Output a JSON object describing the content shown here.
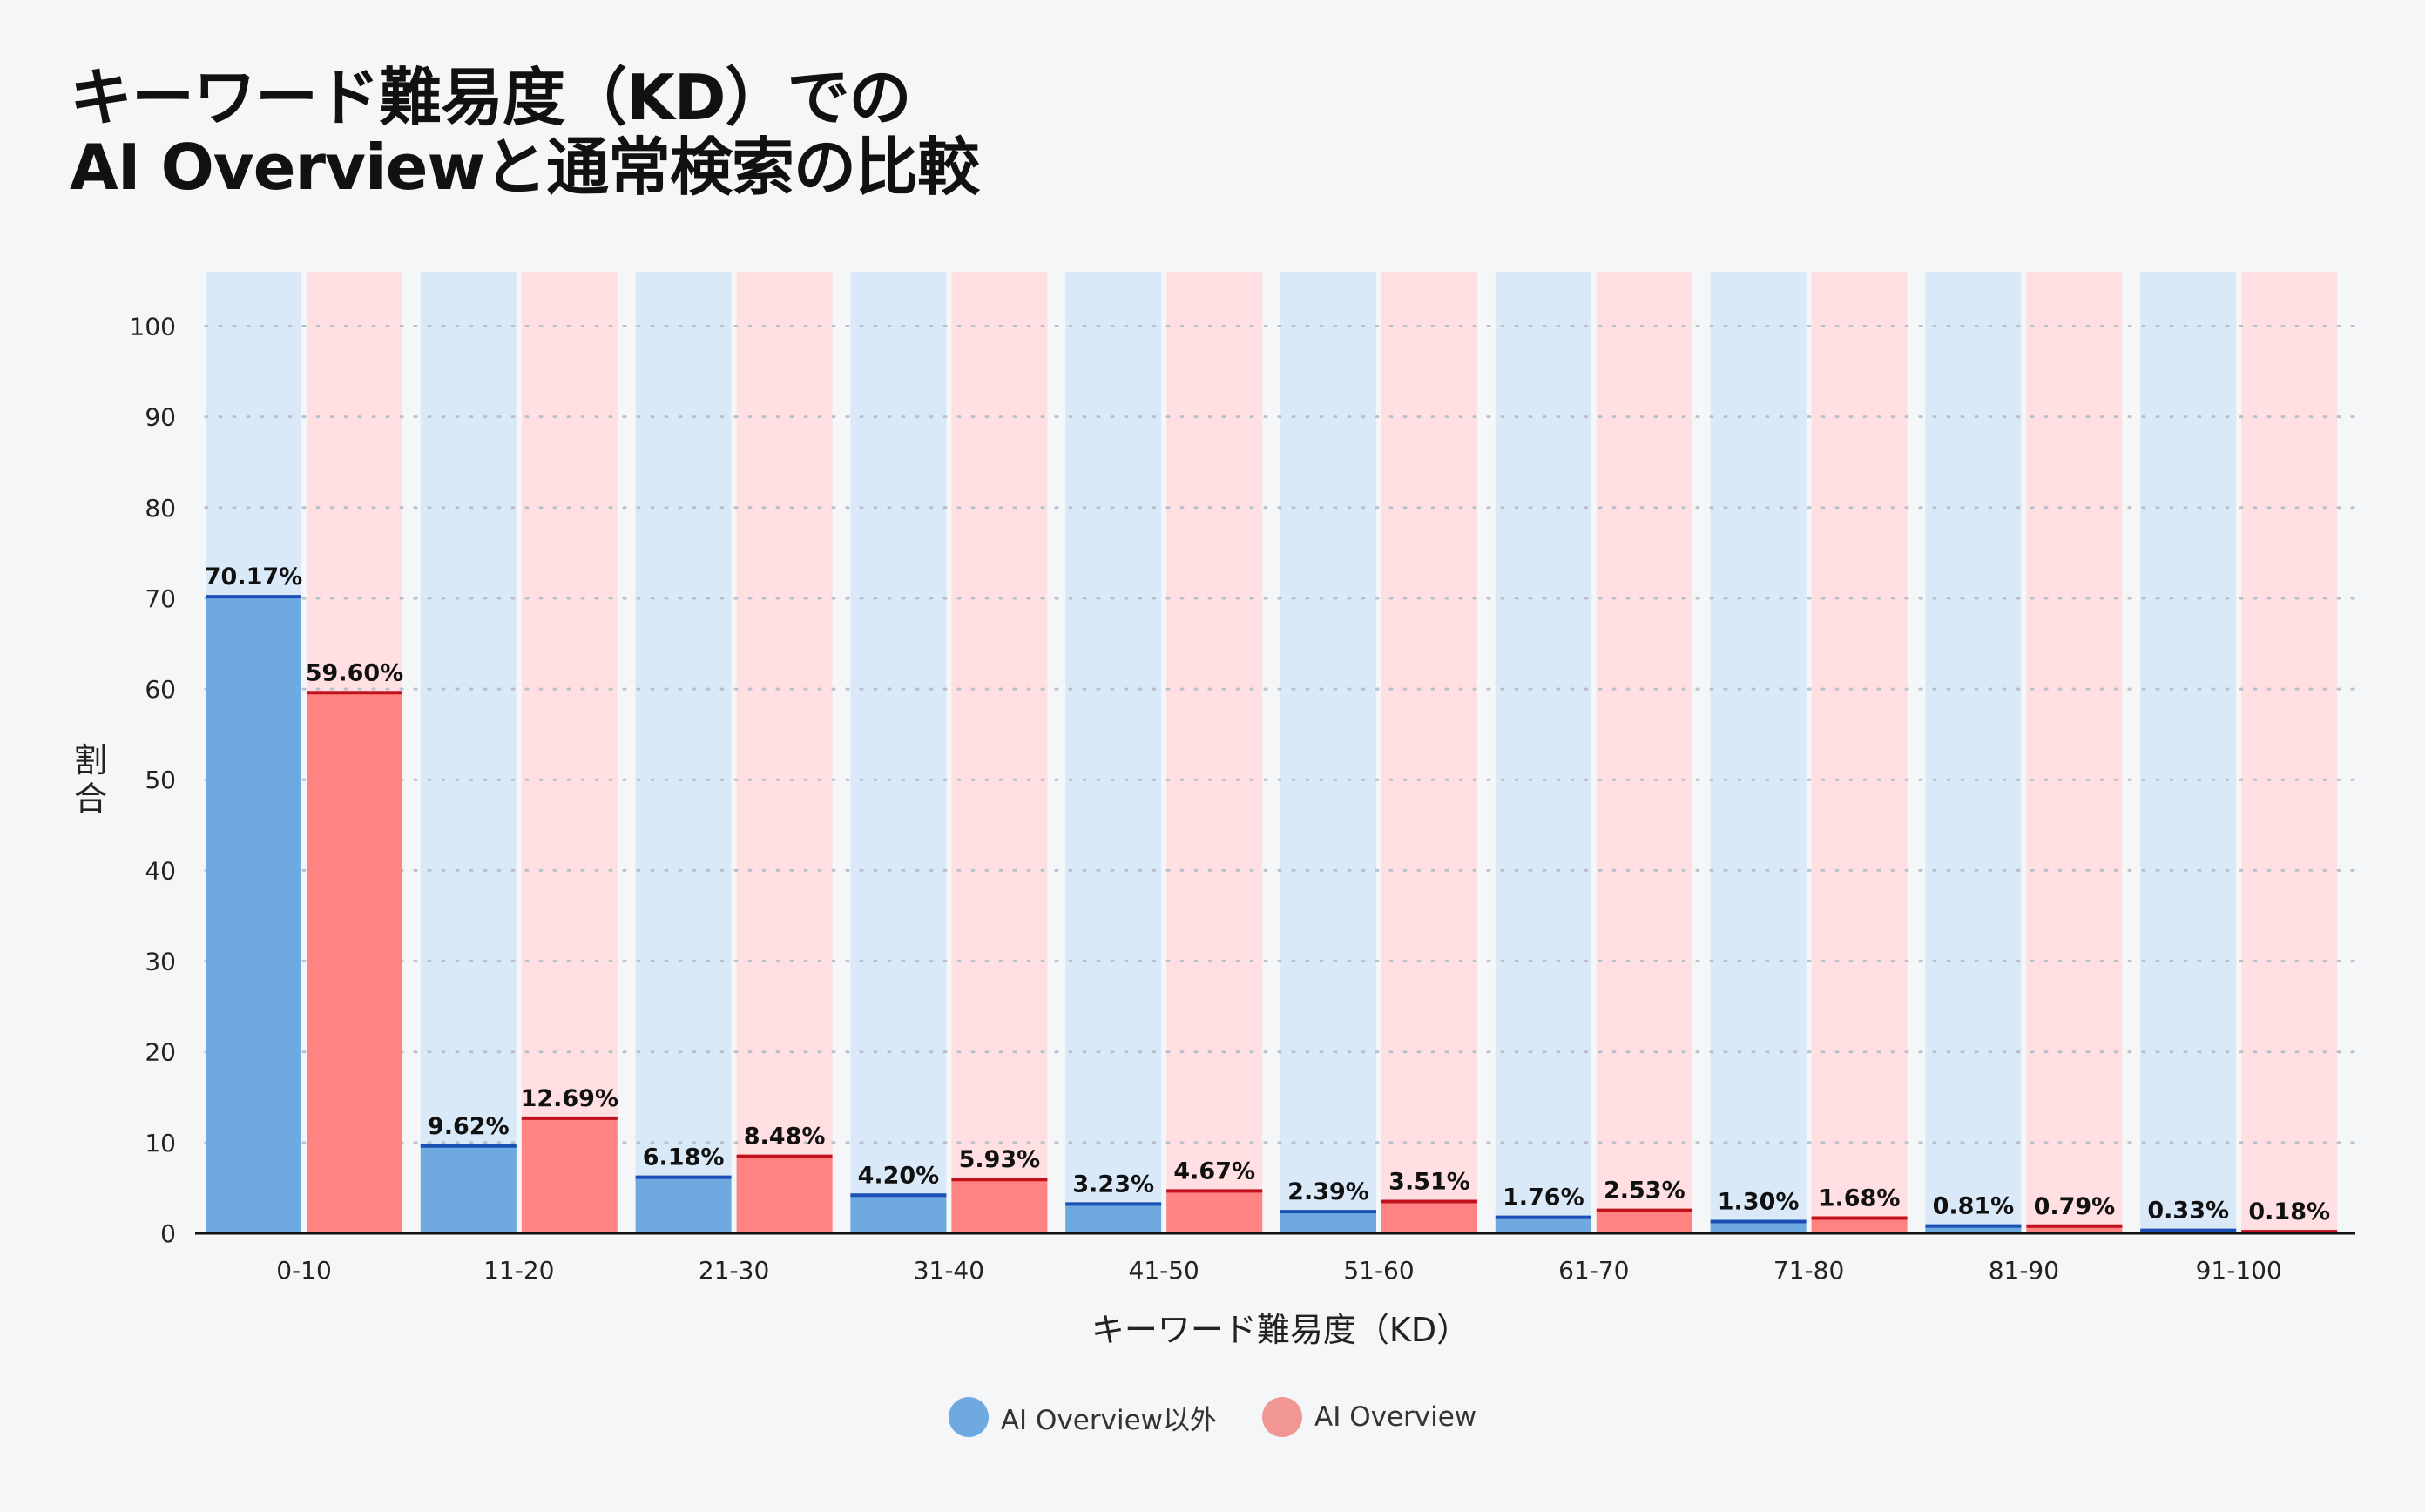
{
  "colors": {
    "series1_bar": "#6ea9e0",
    "series1_bg": "#d9e9f8",
    "series1_line": "#1a4fb5",
    "series2_bar": "#ff8383",
    "series2_bg": "#ffdfe2",
    "series2_line": "#c0111d",
    "legend1": "#6ea9e0",
    "legend2": "#f29595"
  },
  "chart_data": {
    "type": "bar",
    "title_lines": [
      "キーワード難易度（KD）での",
      "AI Overviewと通常検索の比較"
    ],
    "xlabel": "キーワード難易度（KD）",
    "ylabel": "割合",
    "ylim": [
      0,
      106
    ],
    "yticks": [
      0,
      10,
      20,
      30,
      40,
      50,
      60,
      70,
      80,
      90,
      100
    ],
    "grid": true,
    "legend_position": "bottom",
    "categories": [
      "0-10",
      "11-20",
      "21-30",
      "31-40",
      "41-50",
      "51-60",
      "61-70",
      "71-80",
      "81-90",
      "91-100"
    ],
    "series": [
      {
        "name": "AI Overview以外",
        "values": [
          70.17,
          9.62,
          6.18,
          4.2,
          3.23,
          2.39,
          1.76,
          1.3,
          0.81,
          0.33
        ],
        "labels": [
          "70.17%",
          "9.62%",
          "6.18%",
          "4.20%",
          "3.23%",
          "2.39%",
          "1.76%",
          "1.30%",
          "0.81%",
          "0.33%"
        ]
      },
      {
        "name": "AI Overview",
        "values": [
          59.6,
          12.69,
          8.48,
          5.93,
          4.67,
          3.51,
          2.53,
          1.68,
          0.79,
          0.18
        ],
        "labels": [
          "59.60%",
          "12.69%",
          "8.48%",
          "5.93%",
          "4.67%",
          "3.51%",
          "2.53%",
          "1.68%",
          "0.79%",
          "0.18%"
        ]
      }
    ]
  }
}
